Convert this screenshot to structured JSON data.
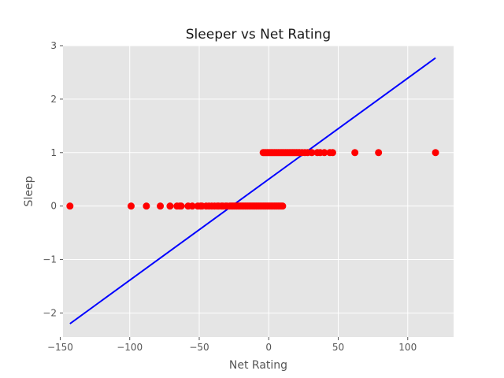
{
  "chart_data": {
    "type": "scatter",
    "title": "Sleeper vs Net Rating",
    "xlabel": "Net Rating",
    "ylabel": "Sleep",
    "xlim": [
      -148,
      133
    ],
    "ylim": [
      -2.45,
      3.0
    ],
    "x_ticks": [
      -150,
      -100,
      -50,
      0,
      50,
      100
    ],
    "y_ticks": [
      -2,
      -1,
      0,
      1,
      2,
      3
    ],
    "x_tick_labels": [
      "−150",
      "−100",
      "−50",
      "0",
      "50",
      "100"
    ],
    "y_tick_labels": [
      "−2",
      "−1",
      "0",
      "1",
      "2",
      "3"
    ],
    "grid": true,
    "background": "#e5e5e5",
    "grid_color": "#ffffff",
    "point_color": "#ff0000",
    "line_color": "#0000ff",
    "series": [
      {
        "kind": "scatter",
        "x": [
          -143,
          -99,
          -88,
          -78,
          -71,
          -66,
          -64,
          -63,
          -58,
          -55,
          -51,
          -49,
          -48,
          -45,
          -43,
          -41,
          -39,
          -37,
          -36,
          -34,
          -33,
          -31,
          -30,
          -28,
          -27,
          -26,
          -25,
          -24,
          -23,
          -22,
          -21,
          -20,
          -19,
          -18,
          -17,
          -16,
          -15,
          -14,
          -13,
          -12,
          -11,
          -10,
          -9,
          -8,
          -7,
          -6,
          -5,
          -4,
          -3,
          -2,
          -1,
          0,
          1,
          2,
          3,
          4,
          5,
          6,
          7,
          8,
          9,
          10,
          -4,
          -3,
          -2,
          -1,
          0,
          1,
          2,
          3,
          4,
          5,
          6,
          7,
          8,
          9,
          10,
          11,
          12,
          13,
          14,
          15,
          16,
          17,
          18,
          19,
          20,
          21,
          22,
          24,
          26,
          28,
          31,
          35,
          37,
          40,
          44,
          46,
          62,
          79,
          120
        ],
        "y": [
          0,
          0,
          0,
          0,
          0,
          0,
          0,
          0,
          0,
          0,
          0,
          0,
          0,
          0,
          0,
          0,
          0,
          0,
          0,
          0,
          0,
          0,
          0,
          0,
          0,
          0,
          0,
          0,
          0,
          0,
          0,
          0,
          0,
          0,
          0,
          0,
          0,
          0,
          0,
          0,
          0,
          0,
          0,
          0,
          0,
          0,
          0,
          0,
          0,
          0,
          0,
          0,
          0,
          0,
          0,
          0,
          0,
          0,
          0,
          0,
          0,
          0,
          1,
          1,
          1,
          1,
          1,
          1,
          1,
          1,
          1,
          1,
          1,
          1,
          1,
          1,
          1,
          1,
          1,
          1,
          1,
          1,
          1,
          1,
          1,
          1,
          1,
          1,
          1,
          1,
          1,
          1,
          1,
          1,
          1,
          1,
          1,
          1,
          1,
          1,
          1
        ]
      },
      {
        "kind": "line",
        "x": [
          -143,
          120
        ],
        "y": [
          -2.2,
          2.77
        ]
      }
    ]
  }
}
